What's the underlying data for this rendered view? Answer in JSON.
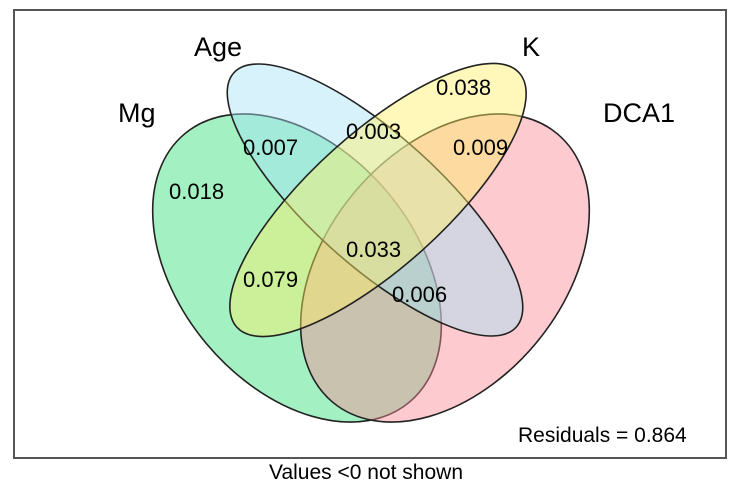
{
  "sets": [
    {
      "id": "mg",
      "name": "Mg",
      "color": "#33e07a"
    },
    {
      "id": "age",
      "name": "Age",
      "color": "#a6e2f6"
    },
    {
      "id": "k",
      "name": "K",
      "color": "#fff066"
    },
    {
      "id": "dca1",
      "name": "DCA1",
      "color": "#f98a95"
    }
  ],
  "regions": {
    "mg_only": "0.018",
    "mg_age": "0.007",
    "age_k": "0.003",
    "k_only": "0.038",
    "k_dca1": "0.009",
    "mg_k": "0.079",
    "all": "0.033",
    "mg_age_dca1": "0.006"
  },
  "residuals": "Residuals = 0.864",
  "footnote": "Values <0 not shown"
}
